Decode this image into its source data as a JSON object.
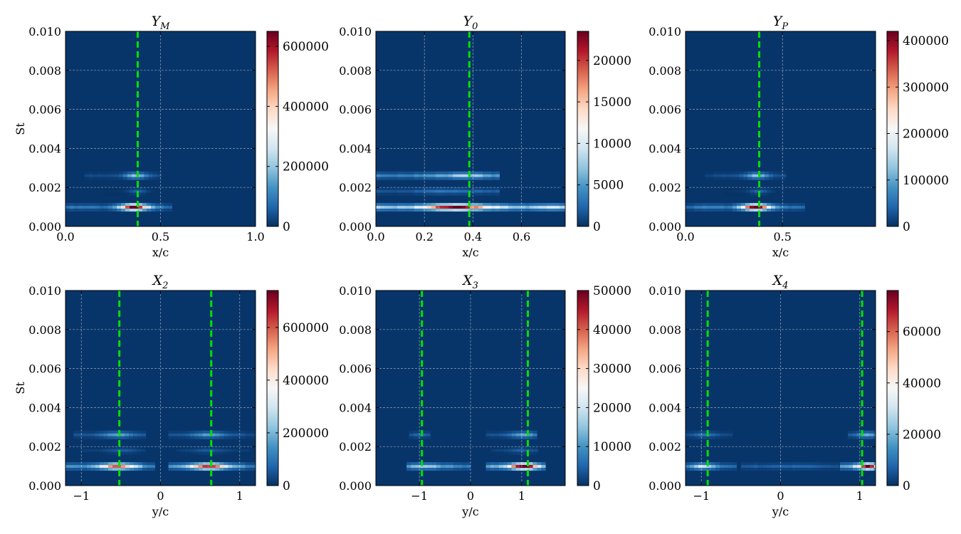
{
  "chart_data": [
    {
      "type": "heatmap",
      "title": "Y",
      "title_sub": "M",
      "xlabel": "x/c",
      "ylabel": "St",
      "xlim": [
        0.0,
        1.0
      ],
      "ylim": [
        0.0,
        0.01
      ],
      "xticks": [
        0.0,
        0.5,
        1.0
      ],
      "xtick_labels": [
        "0.0",
        "0.5",
        "1.0"
      ],
      "yticks": [
        0.0,
        0.002,
        0.004,
        0.006,
        0.008,
        0.01
      ],
      "ytick_labels": [
        "0.000",
        "0.002",
        "0.004",
        "0.006",
        "0.008",
        "0.010"
      ],
      "colorbar_range": [
        0,
        650000
      ],
      "colorbar_ticks": [
        0,
        200000,
        400000,
        600000
      ],
      "colorbar_labels": [
        "0",
        "200000",
        "400000",
        "600000"
      ],
      "vlines": [
        0.38
      ],
      "bands": [
        {
          "st": 0.00098,
          "x_from": 0.0,
          "x_to": 0.55,
          "center": 0.36,
          "width": 0.07,
          "peak": 650000,
          "base": 70000
        },
        {
          "st": 0.0026,
          "x_from": 0.1,
          "x_to": 0.5,
          "center": 0.37,
          "width": 0.06,
          "peak": 200000,
          "base": 25000
        },
        {
          "st": 0.0018,
          "x_from": 0.2,
          "x_to": 0.45,
          "center": 0.38,
          "width": 0.05,
          "peak": 60000,
          "base": 5000
        }
      ]
    },
    {
      "type": "heatmap",
      "title": "Y",
      "title_sub": "0",
      "xlabel": "x/c",
      "ylabel": "",
      "xlim": [
        0.0,
        0.78
      ],
      "ylim": [
        0.0,
        0.01
      ],
      "xticks": [
        0.0,
        0.2,
        0.4,
        0.6
      ],
      "xtick_labels": [
        "0.0",
        "0.2",
        "0.4",
        "0.6"
      ],
      "yticks": [
        0.0,
        0.002,
        0.004,
        0.006,
        0.008,
        0.01
      ],
      "ytick_labels": [
        "0.000",
        "0.002",
        "0.004",
        "0.006",
        "0.008",
        "0.010"
      ],
      "colorbar_range": [
        0,
        23500
      ],
      "colorbar_ticks": [
        0,
        5000,
        10000,
        15000,
        20000
      ],
      "colorbar_labels": [
        "0",
        "5000",
        "10000",
        "15000",
        "20000"
      ],
      "vlines": [
        0.385
      ],
      "bands": [
        {
          "st": 0.00098,
          "x_from": 0.0,
          "x_to": 0.78,
          "center": 0.33,
          "width": 0.1,
          "peak": 23500,
          "base": 7000
        },
        {
          "st": 0.0026,
          "x_from": 0.0,
          "x_to": 0.5,
          "center": 0.36,
          "width": 0.08,
          "peak": 8000,
          "base": 3500
        },
        {
          "st": 0.0018,
          "x_from": 0.0,
          "x_to": 0.5,
          "center": 0.3,
          "width": 0.1,
          "peak": 3000,
          "base": 1500
        }
      ]
    },
    {
      "type": "heatmap",
      "title": "Y",
      "title_sub": "P",
      "xlabel": "x/c",
      "ylabel": "",
      "xlim": [
        0.0,
        0.98
      ],
      "ylim": [
        0.0,
        0.01
      ],
      "xticks": [
        0.0,
        0.5
      ],
      "xtick_labels": [
        "0.0",
        "0.5"
      ],
      "yticks": [
        0.0,
        0.002,
        0.004,
        0.006,
        0.008,
        0.01
      ],
      "ytick_labels": [
        "0.000",
        "0.002",
        "0.004",
        "0.006",
        "0.008",
        "0.010"
      ],
      "colorbar_range": [
        0,
        420000
      ],
      "colorbar_ticks": [
        0,
        100000,
        200000,
        300000,
        400000
      ],
      "colorbar_labels": [
        "0",
        "100000",
        "200000",
        "300000",
        "400000"
      ],
      "vlines": [
        0.38
      ],
      "bands": [
        {
          "st": 0.00098,
          "x_from": 0.0,
          "x_to": 0.6,
          "center": 0.36,
          "width": 0.07,
          "peak": 420000,
          "base": 50000
        },
        {
          "st": 0.0026,
          "x_from": 0.1,
          "x_to": 0.5,
          "center": 0.37,
          "width": 0.06,
          "peak": 130000,
          "base": 18000
        },
        {
          "st": 0.0018,
          "x_from": 0.2,
          "x_to": 0.45,
          "center": 0.38,
          "width": 0.05,
          "peak": 40000,
          "base": 5000
        }
      ]
    },
    {
      "type": "heatmap",
      "title": "X",
      "title_sub": "2",
      "xlabel": "y/c",
      "ylabel": "St",
      "xlim": [
        -1.2,
        1.2
      ],
      "ylim": [
        0.0,
        0.01
      ],
      "xticks": [
        -1,
        0,
        1
      ],
      "xtick_labels": [
        "−1",
        "0",
        "1"
      ],
      "yticks": [
        0.0,
        0.002,
        0.004,
        0.006,
        0.008,
        0.01
      ],
      "ytick_labels": [
        "0.000",
        "0.002",
        "0.004",
        "0.006",
        "0.008",
        "0.010"
      ],
      "colorbar_range": [
        0,
        740000
      ],
      "colorbar_ticks": [
        0,
        200000,
        400000,
        600000
      ],
      "colorbar_labels": [
        "0",
        "200000",
        "400000",
        "600000"
      ],
      "vlines": [
        -0.52,
        0.64
      ],
      "bands": [
        {
          "st": 0.00098,
          "x_from": -1.2,
          "x_to": -0.1,
          "center": -0.55,
          "width": 0.22,
          "peak": 560000,
          "base": 120000
        },
        {
          "st": 0.00098,
          "x_from": 0.1,
          "x_to": 1.2,
          "center": 0.6,
          "width": 0.22,
          "peak": 640000,
          "base": 120000
        },
        {
          "st": 0.0026,
          "x_from": -1.1,
          "x_to": -0.2,
          "center": -0.55,
          "width": 0.2,
          "peak": 170000,
          "base": 40000
        },
        {
          "st": 0.0026,
          "x_from": 0.1,
          "x_to": 1.2,
          "center": 0.6,
          "width": 0.2,
          "peak": 170000,
          "base": 40000
        },
        {
          "st": 0.0018,
          "x_from": -1.0,
          "x_to": -0.2,
          "center": -0.5,
          "width": 0.2,
          "peak": 60000,
          "base": 15000
        },
        {
          "st": 0.0018,
          "x_from": 0.2,
          "x_to": 1.1,
          "center": 0.6,
          "width": 0.2,
          "peak": 60000,
          "base": 15000
        }
      ]
    },
    {
      "type": "heatmap",
      "title": "X",
      "title_sub": "3",
      "xlabel": "y/c",
      "ylabel": "",
      "xlim": [
        -1.85,
        1.85
      ],
      "ylim": [
        0.0,
        0.01
      ],
      "xticks": [
        -1,
        0,
        1
      ],
      "xtick_labels": [
        "−1",
        "0",
        "1"
      ],
      "yticks": [
        0.0,
        0.002,
        0.004,
        0.006,
        0.008,
        0.01
      ],
      "ytick_labels": [
        "0.000",
        "0.002",
        "0.004",
        "0.006",
        "0.008",
        "0.010"
      ],
      "colorbar_range": [
        0,
        50000
      ],
      "colorbar_ticks": [
        0,
        10000,
        20000,
        30000,
        40000,
        50000
      ],
      "colorbar_labels": [
        "0",
        "10000",
        "20000",
        "30000",
        "40000",
        "50000"
      ],
      "vlines": [
        -0.95,
        1.12
      ],
      "bands": [
        {
          "st": 0.00098,
          "x_from": -1.25,
          "x_to": -0.05,
          "center": -0.95,
          "width": 0.3,
          "peak": 15000,
          "base": 8000
        },
        {
          "st": 0.00098,
          "x_from": 0.3,
          "x_to": 1.45,
          "center": 1.05,
          "width": 0.25,
          "peak": 50000,
          "base": 12000
        },
        {
          "st": 0.0026,
          "x_from": -1.2,
          "x_to": -0.8,
          "center": -1.0,
          "width": 0.2,
          "peak": 5000,
          "base": 2000
        },
        {
          "st": 0.0026,
          "x_from": 0.3,
          "x_to": 1.3,
          "center": 1.05,
          "width": 0.25,
          "peak": 12000,
          "base": 3000
        },
        {
          "st": 0.0018,
          "x_from": 0.4,
          "x_to": 1.3,
          "center": 1.0,
          "width": 0.25,
          "peak": 4000,
          "base": 1500
        }
      ]
    },
    {
      "type": "heatmap",
      "title": "X",
      "title_sub": "4",
      "xlabel": "y/c",
      "ylabel": "",
      "xlim": [
        -1.2,
        1.2
      ],
      "ylim": [
        0.0,
        0.01
      ],
      "xticks": [
        -1,
        0,
        1
      ],
      "xtick_labels": [
        "−1",
        "0",
        "1"
      ],
      "yticks": [
        0.0,
        0.002,
        0.004,
        0.006,
        0.008,
        0.01
      ],
      "ytick_labels": [
        "0.000",
        "0.002",
        "0.004",
        "0.006",
        "0.008",
        "0.010"
      ],
      "colorbar_range": [
        0,
        76000
      ],
      "colorbar_ticks": [
        0,
        20000,
        40000,
        60000
      ],
      "colorbar_labels": [
        "0",
        "20000",
        "40000",
        "60000"
      ],
      "vlines": [
        -0.92,
        1.03
      ],
      "bands": [
        {
          "st": 0.00098,
          "x_from": -1.2,
          "x_to": -0.6,
          "center": -0.97,
          "width": 0.15,
          "peak": 30000,
          "base": 8000
        },
        {
          "st": 0.00098,
          "x_from": -0.5,
          "x_to": 0.7,
          "center": 0.1,
          "width": 0.5,
          "peak": 7000,
          "base": 4000
        },
        {
          "st": 0.00098,
          "x_from": 0.75,
          "x_to": 1.2,
          "center": 1.1,
          "width": 0.12,
          "peak": 76000,
          "base": 15000
        },
        {
          "st": 0.0026,
          "x_from": -1.2,
          "x_to": -0.65,
          "center": -0.95,
          "width": 0.15,
          "peak": 10000,
          "base": 3000
        },
        {
          "st": 0.0026,
          "x_from": 0.85,
          "x_to": 1.2,
          "center": 1.1,
          "width": 0.12,
          "peak": 20000,
          "base": 5000
        }
      ]
    }
  ]
}
